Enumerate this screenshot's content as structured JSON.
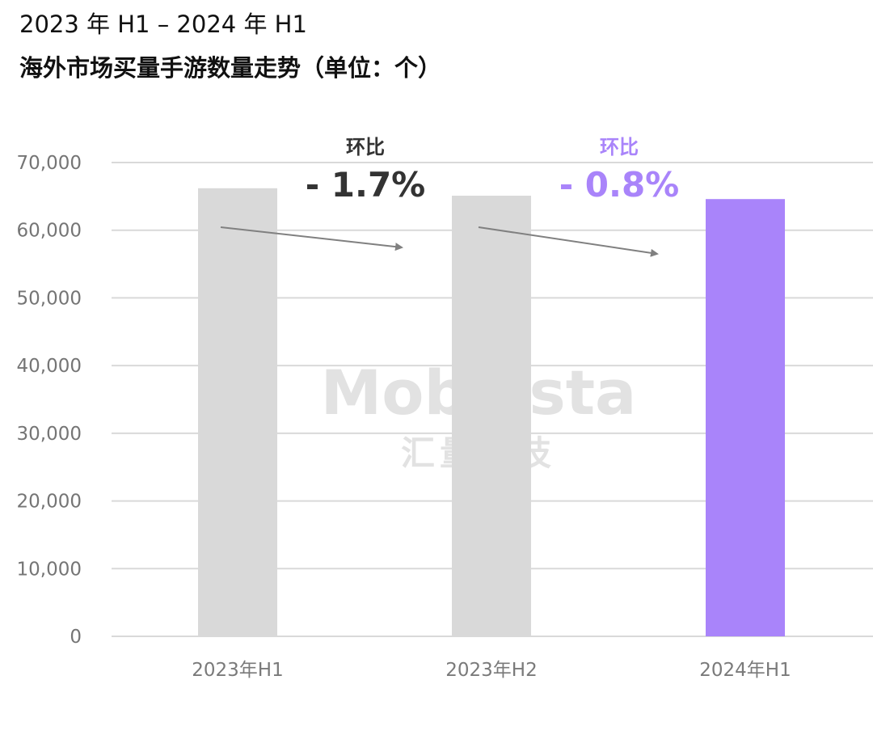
{
  "title": {
    "line1": "2023 年 H1 – 2024 年 H1",
    "line2": "海外市场买量手游数量走势（单位：个）"
  },
  "watermark": {
    "brand": "Mobvista",
    "subtitle": "汇量科技"
  },
  "colors": {
    "bar_default": "#d9d9d9",
    "bar_highlight": "#a984fa",
    "grid": "#d9d9d9",
    "arrow": "#808080",
    "text_dark": "#333333",
    "text_highlight": "#a984fa"
  },
  "chart_data": {
    "type": "bar",
    "categories": [
      "2023年H1",
      "2023年H2",
      "2024年H1"
    ],
    "values": [
      66200,
      65100,
      64600
    ],
    "highlight_index": 2,
    "ylim": [
      0,
      70000
    ],
    "yticks": [
      0,
      10000,
      20000,
      30000,
      40000,
      50000,
      60000,
      70000
    ],
    "ytick_labels": [
      "0",
      "10,000",
      "20,000",
      "30,000",
      "40,000",
      "50,000",
      "60,000",
      "70,000"
    ],
    "grid": true,
    "xlabel": "",
    "ylabel": "",
    "annotations": [
      {
        "caption": "环比",
        "value": "- 1.7%",
        "from": 0,
        "to": 1,
        "color": "#333333"
      },
      {
        "caption": "环比",
        "value": "- 0.8%",
        "from": 1,
        "to": 2,
        "color": "#a984fa"
      }
    ]
  }
}
